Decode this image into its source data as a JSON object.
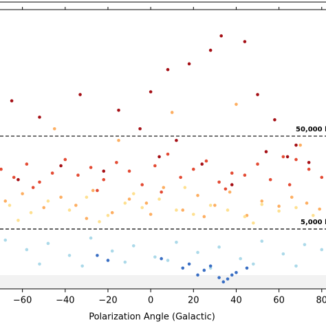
{
  "chart_data": {
    "type": "scatter",
    "xlabel": "Polarization Angle (Galactic)",
    "xlim": [
      -70.5,
      82
    ],
    "ylim": [
      1135,
      1150000
    ],
    "yscale": "log",
    "xticks": [
      {
        "value": -60,
        "label": "−60"
      },
      {
        "value": -40,
        "label": "−40"
      },
      {
        "value": -20,
        "label": "−20"
      },
      0,
      20,
      40,
      60,
      80
    ],
    "hlines": [
      {
        "value": 50000,
        "label": "50,000 l"
      },
      {
        "value": 5000,
        "label": "5,000 l"
      }
    ],
    "series": [
      {
        "color": "#a50f15",
        "x": [
          -65,
          -52,
          -33,
          -15,
          0,
          8,
          18,
          28,
          33,
          44,
          50,
          58,
          68,
          74,
          -42,
          -22,
          4,
          24,
          54,
          64,
          -62,
          38,
          -5,
          12
        ],
        "values": [
          120000,
          80000,
          140000,
          95000,
          150000,
          260000,
          300000,
          420000,
          600000,
          520000,
          140000,
          75000,
          40000,
          26000,
          24000,
          21000,
          30000,
          25000,
          34000,
          30000,
          17000,
          15000,
          60000,
          45000
        ]
      },
      {
        "color": "#e34a33",
        "x": [
          -70,
          -64,
          -58,
          -52,
          -46,
          -40,
          -34,
          -28,
          -22,
          -16,
          -10,
          -4,
          2,
          8,
          14,
          20,
          26,
          32,
          38,
          44,
          50,
          56,
          62,
          68,
          74,
          80,
          -55,
          -25,
          5,
          35,
          65
        ],
        "values": [
          22000,
          18000,
          25000,
          16000,
          20000,
          28000,
          19000,
          23000,
          17000,
          26000,
          21000,
          15000,
          24000,
          32000,
          18000,
          22000,
          27000,
          16000,
          20000,
          19000,
          25000,
          17000,
          30000,
          28000,
          22000,
          18000,
          14000,
          13000,
          12500,
          13500,
          15000
        ]
      },
      {
        "color": "#fdae61",
        "x": [
          -68,
          -60,
          -50,
          -42,
          -35,
          -27,
          -18,
          -10,
          -2,
          6,
          15,
          22,
          30,
          37,
          45,
          52,
          60,
          66,
          73,
          79,
          -45,
          -15,
          10,
          40,
          70,
          -30,
          0,
          25
        ],
        "values": [
          10000,
          12000,
          8500,
          11000,
          9000,
          13000,
          7500,
          10500,
          9500,
          14000,
          8000,
          11500,
          9000,
          12500,
          7000,
          10000,
          8800,
          11000,
          9500,
          8200,
          60000,
          45000,
          90000,
          110000,
          40000,
          6500,
          7200,
          6800
        ]
      },
      {
        "color": "#fee090",
        "x": [
          -66,
          -56,
          -48,
          -38,
          -30,
          -20,
          -12,
          -4,
          4,
          12,
          20,
          28,
          36,
          44,
          52,
          60,
          68,
          76,
          -62,
          -24,
          -8,
          16,
          48
        ],
        "values": [
          9000,
          7500,
          10000,
          8000,
          11000,
          7000,
          9500,
          8500,
          10500,
          8000,
          7200,
          9000,
          8000,
          6800,
          9200,
          7800,
          8500,
          7000,
          6200,
          6000,
          12000,
          14000,
          5800
        ]
      },
      {
        "color": "#abd9e9",
        "x": [
          -68,
          -58,
          -48,
          -38,
          -28,
          -18,
          -8,
          2,
          12,
          22,
          32,
          42,
          52,
          62,
          72,
          80,
          -52,
          -32,
          -12,
          8,
          28,
          48,
          68
        ],
        "values": [
          3800,
          3000,
          3500,
          2600,
          4000,
          2900,
          3300,
          2500,
          3600,
          2800,
          3200,
          2400,
          3700,
          2700,
          3400,
          3000,
          2100,
          2000,
          2200,
          2300,
          1900,
          2100,
          2000
        ]
      },
      {
        "color": "#3a6fc4",
        "x": [
          -25,
          -20,
          15,
          18,
          22,
          25,
          28,
          32,
          34,
          36,
          38,
          40,
          45,
          5
        ],
        "values": [
          2600,
          2300,
          1900,
          2100,
          1600,
          1800,
          2000,
          1500,
          1350,
          1450,
          1600,
          1700,
          1900,
          2400
        ]
      }
    ]
  }
}
